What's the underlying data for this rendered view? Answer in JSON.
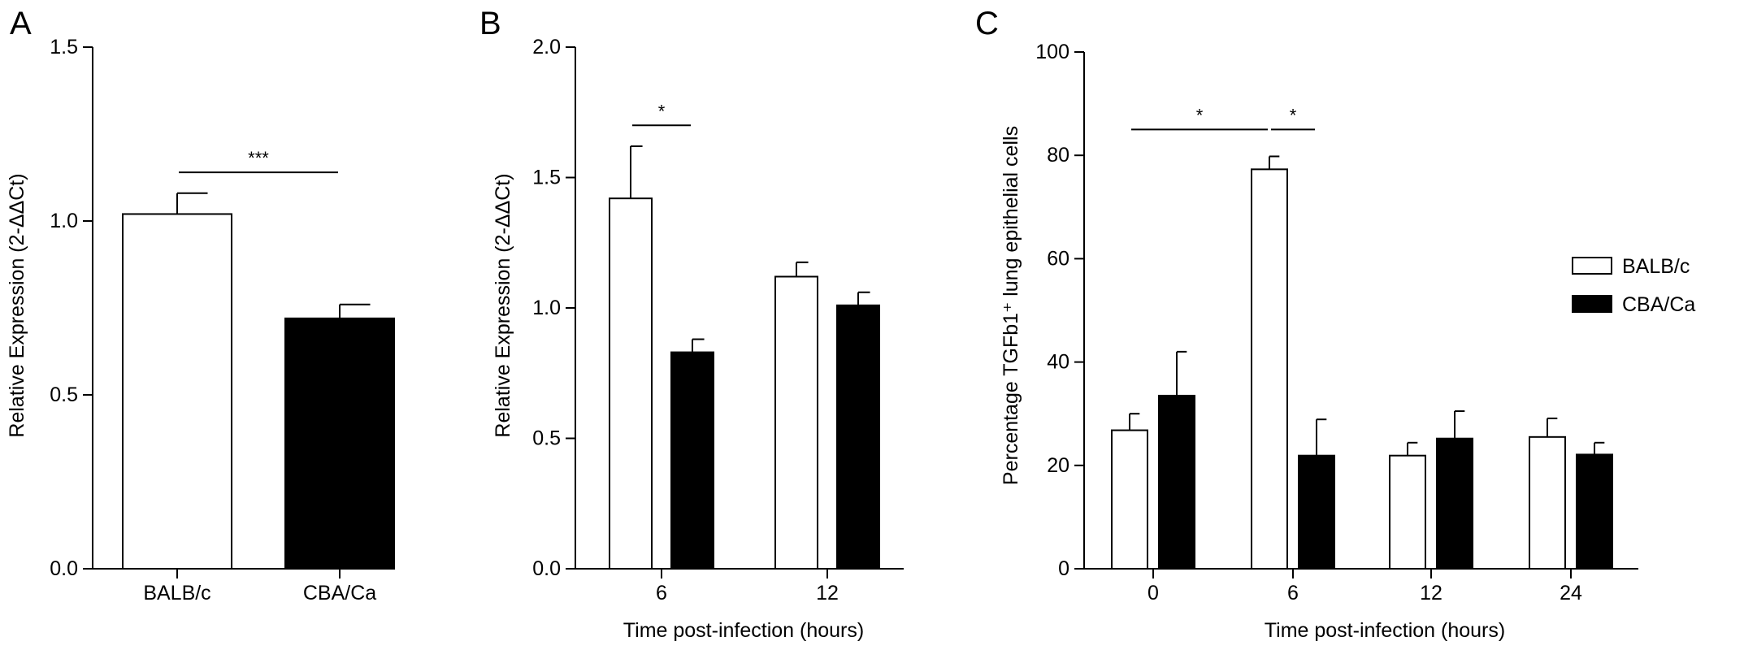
{
  "colors": {
    "balb": "#ffffff",
    "cba": "#000000",
    "ink": "#000000"
  },
  "chart_data": [
    {
      "panel_label": "A",
      "type": "bar",
      "categories": [
        "BALB/c",
        "CBA/Ca"
      ],
      "series": [
        {
          "values": [
            1.02,
            0.72
          ],
          "errors": [
            0.06,
            0.04
          ]
        }
      ],
      "bar_fills": [
        "#ffffff",
        "#000000"
      ],
      "title": "",
      "xlabel": "",
      "ylabel": "Relative Expression (2-ΔΔCt)",
      "ylim": [
        0,
        1.5
      ],
      "yticks": [
        "0.0",
        "0.5",
        "1.0",
        "1.5"
      ],
      "significance": [
        {
          "label": "***",
          "from": 0,
          "to": 1,
          "y": 1.14
        }
      ]
    },
    {
      "panel_label": "B",
      "type": "bar",
      "categories": [
        "6",
        "12"
      ],
      "series": [
        {
          "name": "BALB/c",
          "values": [
            1.42,
            1.12
          ],
          "errors": [
            0.2,
            0.055
          ]
        },
        {
          "name": "CBA/Ca",
          "values": [
            0.83,
            1.01
          ],
          "errors": [
            0.05,
            0.05
          ]
        }
      ],
      "title": "",
      "xlabel": "Time post-infection (hours)",
      "ylabel": "Relative Expression (2-ΔΔCt)",
      "ylim": [
        0,
        2.0
      ],
      "yticks": [
        "0.0",
        "0.5",
        "1.0",
        "1.5",
        "2.0"
      ],
      "significance": [
        {
          "label": "*",
          "from": [
            0,
            0
          ],
          "to": [
            0,
            1
          ],
          "y": 1.7
        }
      ]
    },
    {
      "panel_label": "C",
      "type": "bar",
      "categories": [
        "0",
        "6",
        "12",
        "24"
      ],
      "series": [
        {
          "name": "BALB/c",
          "values": [
            26.8,
            77.3,
            21.9,
            25.5
          ],
          "errors": [
            3.2,
            2.5,
            2.5,
            3.6
          ]
        },
        {
          "name": "CBA/Ca",
          "values": [
            33.5,
            21.9,
            25.2,
            22.1
          ],
          "errors": [
            8.5,
            7.0,
            5.3,
            2.3
          ]
        }
      ],
      "title": "",
      "xlabel": "Time post-infection (hours)",
      "ylabel": "Percentage TGFb1⁺ lung epithelial cells",
      "ylim": [
        0,
        100
      ],
      "yticks": [
        "0",
        "20",
        "40",
        "60",
        "80",
        "100"
      ],
      "legend": {
        "position": "right",
        "entries": [
          "BALB/c",
          "CBA/Ca"
        ]
      },
      "significance": [
        {
          "label": "*",
          "from": [
            0,
            0
          ],
          "to": [
            1,
            0
          ],
          "y": 85
        },
        {
          "label": "*",
          "from": [
            1,
            0
          ],
          "to": [
            1,
            1
          ],
          "y": 85
        }
      ]
    }
  ]
}
